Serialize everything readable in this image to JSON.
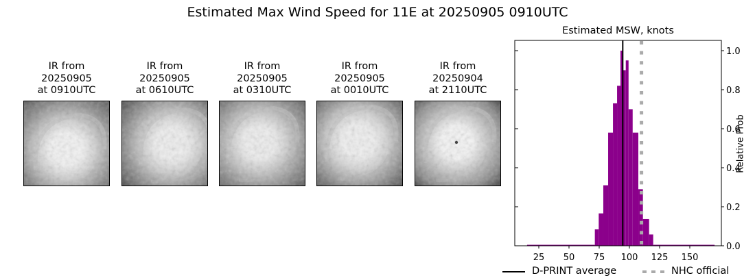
{
  "figure": {
    "suptitle": "Estimated Max Wind Speed for 11E at 20250905 0910UTC"
  },
  "thumbnails": [
    {
      "line1": "IR from",
      "line2": "20250905",
      "line3": "at 0910UTC"
    },
    {
      "line1": "IR from",
      "line2": "20250905",
      "line3": "at 0610UTC"
    },
    {
      "line1": "IR from",
      "line2": "20250905",
      "line3": "at 0310UTC"
    },
    {
      "line1": "IR from",
      "line2": "20250905",
      "line3": "at 0010UTC"
    },
    {
      "line1": "IR from",
      "line2": "20250904",
      "line3": "at 2110UTC"
    }
  ],
  "legend": {
    "dprint": "D-PRINT average",
    "nhc": "NHC official"
  },
  "colors": {
    "bar": "#8b008b",
    "dprint_line": "#000000",
    "nhc_line": "#aaaaaa"
  },
  "chart_data": {
    "type": "bar",
    "title": "Estimated MSW, knots",
    "xlabel": "",
    "ylabel": "Relative Prob",
    "xlim": [
      5,
      175
    ],
    "ylim": [
      0,
      1.05
    ],
    "xticks": [
      25,
      50,
      75,
      100,
      125,
      150
    ],
    "yticks": [
      0.0,
      0.2,
      0.4,
      0.6,
      0.8,
      1.0
    ],
    "ytick_labels": [
      "0.0",
      "0.2",
      "0.4",
      "0.6",
      "0.8",
      "1.0"
    ],
    "yaxis_position": "right",
    "grid": false,
    "legend_position": "below",
    "histogram": {
      "bin_edges": [
        15.3,
        71.4,
        74.6,
        78.4,
        82.4,
        86.4,
        89.8,
        92.6,
        94.1,
        97.0,
        99.3,
        102.7,
        107.4,
        111.2,
        116.3,
        119.7,
        170.5
      ],
      "values": [
        0.005,
        0.084,
        0.166,
        0.31,
        0.58,
        0.73,
        0.82,
        1.0,
        0.9,
        0.95,
        0.7,
        0.58,
        0.29,
        0.137,
        0.058,
        0.005
      ]
    },
    "vlines": [
      {
        "name": "D-PRINT average",
        "x": 94.5,
        "style": "solid",
        "color": "#000000"
      },
      {
        "name": "NHC official",
        "x": 110,
        "style": "dotted",
        "color": "#aaaaaa"
      }
    ]
  }
}
